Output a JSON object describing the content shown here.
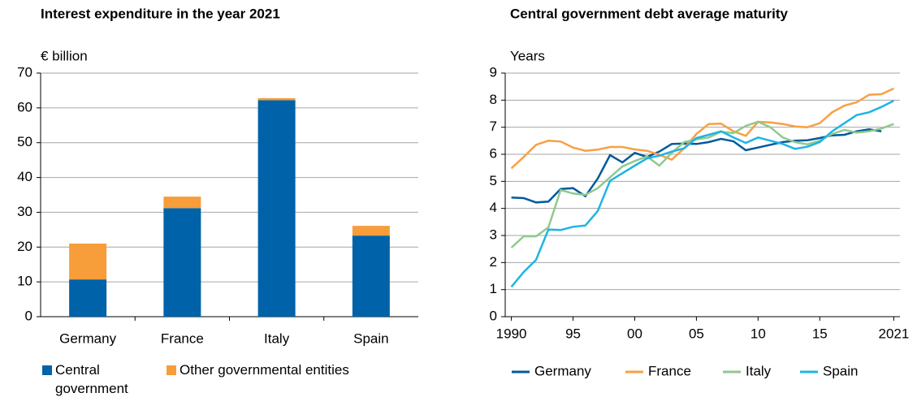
{
  "chart_data": [
    {
      "type": "bar",
      "stacked": true,
      "title": "Interest expenditure in the year 2021",
      "y_label": "€ billion",
      "categories": [
        "Germany",
        "France",
        "Italy",
        "Spain"
      ],
      "series": [
        {
          "name": "Central government",
          "color": "#0062a8",
          "values": [
            10.7,
            31.2,
            62.2,
            23.3
          ]
        },
        {
          "name": "Other governmental entities",
          "color": "#f79d3a",
          "values": [
            10.3,
            3.3,
            0.6,
            2.8
          ]
        }
      ],
      "ylim": [
        0,
        70
      ],
      "yticks": [
        0,
        10,
        20,
        30,
        40,
        50,
        60,
        70
      ],
      "grid": true,
      "legend": "bottom"
    },
    {
      "type": "line",
      "title": "Central government debt average maturity",
      "y_label": "Years",
      "x": [
        1990,
        1991,
        1992,
        1993,
        1994,
        1995,
        1996,
        1997,
        1998,
        1999,
        2000,
        2001,
        2002,
        2003,
        2004,
        2005,
        2006,
        2007,
        2008,
        2009,
        2010,
        2011,
        2012,
        2013,
        2014,
        2015,
        2016,
        2017,
        2018,
        2019,
        2020,
        2021
      ],
      "series": [
        {
          "name": "Germany",
          "color": "#005a9c",
          "values": [
            4.4,
            4.38,
            4.22,
            4.25,
            4.72,
            4.75,
            4.45,
            5.1,
            5.97,
            5.7,
            6.05,
            5.9,
            6.1,
            6.38,
            6.4,
            6.38,
            6.45,
            6.57,
            6.48,
            6.15,
            6.25,
            6.35,
            6.45,
            6.5,
            6.52,
            6.6,
            6.7,
            6.72,
            6.85,
            6.92,
            6.85,
            null
          ]
        },
        {
          "name": "France",
          "color": "#f7a044",
          "values": [
            5.48,
            5.9,
            6.35,
            6.5,
            6.47,
            6.25,
            6.13,
            6.17,
            6.27,
            6.27,
            6.18,
            6.13,
            5.98,
            5.8,
            6.22,
            6.75,
            7.12,
            7.13,
            6.85,
            6.68,
            7.2,
            7.18,
            7.12,
            7.03,
            7.0,
            7.15,
            7.55,
            7.8,
            7.92,
            8.2,
            8.22,
            8.43
          ]
        },
        {
          "name": "Italy",
          "color": "#8fc98e",
          "values": [
            2.55,
            2.97,
            2.97,
            3.3,
            4.68,
            4.55,
            4.5,
            4.75,
            5.15,
            5.55,
            5.75,
            5.92,
            5.58,
            6.05,
            6.45,
            6.55,
            6.62,
            6.83,
            6.78,
            7.05,
            7.2,
            7.0,
            6.62,
            6.45,
            6.37,
            6.5,
            6.75,
            6.9,
            6.8,
            6.85,
            6.95,
            7.12
          ]
        },
        {
          "name": "Spain",
          "color": "#1eb4e6",
          "values": [
            1.1,
            1.65,
            2.1,
            3.22,
            3.2,
            3.32,
            3.37,
            3.9,
            5.02,
            5.3,
            5.58,
            5.85,
            5.95,
            6.1,
            6.22,
            6.6,
            6.72,
            6.85,
            6.62,
            6.42,
            6.62,
            6.5,
            6.38,
            6.2,
            6.28,
            6.45,
            6.85,
            7.15,
            7.45,
            7.55,
            7.75,
            7.98
          ]
        }
      ],
      "xlim": [
        1989.5,
        2021.5
      ],
      "xticks": [
        {
          "value": 1990,
          "label": "1990"
        },
        {
          "value": 1995,
          "label": "95"
        },
        {
          "value": 2000,
          "label": "00"
        },
        {
          "value": 2005,
          "label": "05"
        },
        {
          "value": 2010,
          "label": "10"
        },
        {
          "value": 2015,
          "label": "15"
        },
        {
          "value": 2021,
          "label": "2021"
        }
      ],
      "ylim": [
        0,
        9
      ],
      "yticks": [
        0,
        1,
        2,
        3,
        4,
        5,
        6,
        7,
        8,
        9
      ],
      "grid": true,
      "legend": "bottom"
    }
  ]
}
